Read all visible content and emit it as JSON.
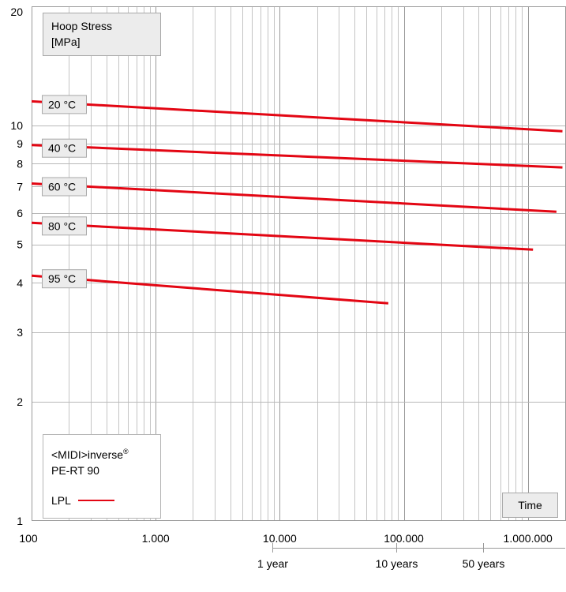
{
  "chart_data": {
    "type": "line",
    "title": "",
    "ylabel_lines": [
      "Hoop Stress",
      "[MPa]"
    ],
    "xlabel": "Time",
    "x_scale": "log",
    "y_scale": "log",
    "xlim": [
      100,
      2000000
    ],
    "ylim": [
      1,
      20
    ],
    "grid": true,
    "x_ticks": [
      {
        "value": 100,
        "label": "100"
      },
      {
        "value": 1000,
        "label": "1.000"
      },
      {
        "value": 10000,
        "label": "10.000"
      },
      {
        "value": 100000,
        "label": "100.000"
      },
      {
        "value": 1000000,
        "label": "1.000.000"
      }
    ],
    "y_ticks": [
      {
        "value": 1,
        "label": "1"
      },
      {
        "value": 2,
        "label": "2"
      },
      {
        "value": 3,
        "label": "3"
      },
      {
        "value": 4,
        "label": "4"
      },
      {
        "value": 5,
        "label": "5"
      },
      {
        "value": 6,
        "label": "6"
      },
      {
        "value": 7,
        "label": "7"
      },
      {
        "value": 8,
        "label": "8"
      },
      {
        "value": 9,
        "label": "9"
      },
      {
        "value": 10,
        "label": "10"
      },
      {
        "value": 20,
        "label": "20"
      }
    ],
    "time_ticks": [
      {
        "value": 8760,
        "label": "1 year"
      },
      {
        "value": 87600,
        "label": "10 years"
      },
      {
        "value": 438000,
        "label": "50 years"
      }
    ],
    "series": [
      {
        "name": "20 °C",
        "color": "#e30613",
        "x": [
          100,
          1900000
        ],
        "y": [
          11.5,
          9.67
        ]
      },
      {
        "name": "40 °C",
        "color": "#e30613",
        "x": [
          100,
          1900000
        ],
        "y": [
          8.92,
          7.83
        ]
      },
      {
        "name": "60 °C",
        "color": "#e30613",
        "x": [
          100,
          1700000
        ],
        "y": [
          7.13,
          6.05
        ]
      },
      {
        "name": "80 °C",
        "color": "#e30613",
        "x": [
          100,
          1100000
        ],
        "y": [
          5.67,
          4.85
        ]
      },
      {
        "name": "95 °C",
        "color": "#e30613",
        "x": [
          100,
          75000
        ],
        "y": [
          4.17,
          3.55
        ]
      }
    ],
    "legend": {
      "line1": "<MIDI>inverse",
      "trademark": "®",
      "line2": "PE-RT 90",
      "entry_label": "LPL",
      "entry_color": "#e30613",
      "placement": "bottom-left"
    }
  }
}
